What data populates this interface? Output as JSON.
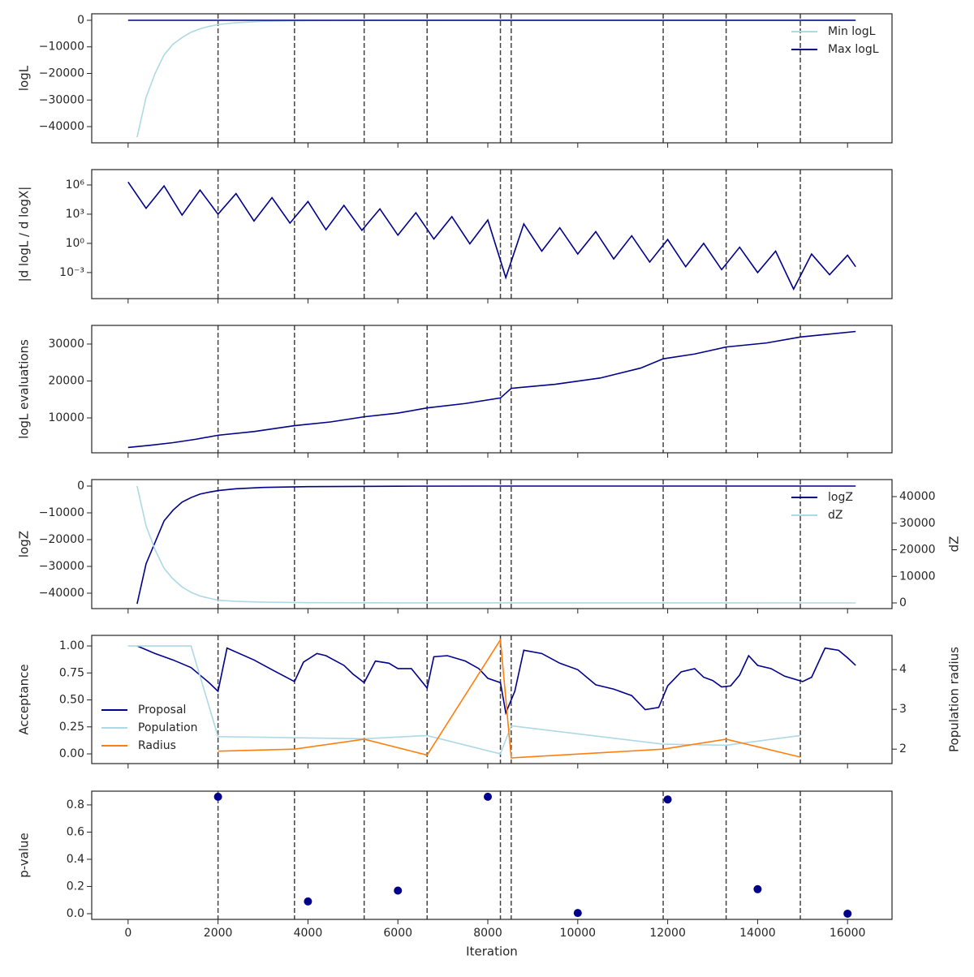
{
  "chart_data": [
    {
      "type": "line",
      "ylabel": "logL",
      "xlim": [
        -809,
        16989
      ],
      "xticks": [
        0,
        2000,
        4000,
        6000,
        8000,
        10000,
        12000,
        14000,
        16000
      ],
      "ylim": [
        -46100,
        2440
      ],
      "yticks": [
        {
          "value": -40000,
          "label": "−40000"
        },
        {
          "value": -30000,
          "label": "−30000"
        },
        {
          "value": -20000,
          "label": "−20000"
        },
        {
          "value": -10000,
          "label": "−10000"
        },
        0
      ],
      "vlines": [
        2000,
        3700,
        5250,
        6650,
        8280,
        8520,
        11900,
        13300,
        14950
      ],
      "legend": "upper right",
      "series": [
        {
          "name": "Min logL",
          "color": "#add8e6",
          "x": [
            200,
            400,
            600,
            800,
            1000,
            1200,
            1400,
            1600,
            1800,
            2000,
            2400,
            3000,
            4000,
            6000,
            8000,
            16180
          ],
          "values": [
            -44000,
            -29000,
            -20000,
            -13000,
            -9000,
            -6500,
            -4500,
            -3200,
            -2300,
            -1600,
            -900,
            -400,
            -150,
            -30,
            0,
            0
          ]
        },
        {
          "name": "Max logL",
          "color": "#00008b",
          "x": [
            0,
            16180
          ],
          "values": [
            0,
            0
          ]
        }
      ]
    },
    {
      "type": "line",
      "ylabel": "|d logL / d logX|",
      "yscale": "log",
      "xlim": [
        -809,
        16989
      ],
      "xticks": [
        0,
        2000,
        4000,
        6000,
        8000,
        10000,
        12000,
        14000,
        16000
      ],
      "ylim": [
        2.1e-06,
        38000000
      ],
      "yticks": [
        {
          "value": 0.001,
          "label": "10⁻³"
        },
        {
          "value": 1,
          "label": "10⁰"
        },
        {
          "value": 1000,
          "label": "10³"
        },
        {
          "value": 1000000,
          "label": "10⁶"
        }
      ],
      "vlines": [
        2000,
        3700,
        5250,
        6650,
        8280,
        8520,
        11900,
        13300,
        14950
      ],
      "series": [
        {
          "color": "#00008b",
          "x": [
            0,
            400,
            800,
            1200,
            1600,
            2000,
            2400,
            2800,
            3200,
            3600,
            4000,
            4400,
            4800,
            5200,
            5600,
            6000,
            6400,
            6800,
            7200,
            7600,
            8000,
            8400,
            8800,
            9200,
            9600,
            10000,
            10400,
            10800,
            11200,
            11600,
            12000,
            12400,
            12800,
            13200,
            13600,
            14000,
            14400,
            14800,
            15200,
            15600,
            16000,
            16180
          ],
          "values": [
            2000000,
            4000,
            800000,
            800,
            300000,
            1000,
            130000,
            200,
            50000,
            120,
            20000,
            25,
            8000,
            22,
            3500,
            7,
            1400,
            2.8,
            560,
            0.9,
            250,
            0.0003,
            100,
            0.16,
            40,
            0.08,
            16,
            0.025,
            6,
            0.012,
            2.5,
            0.004,
            1,
            0.002,
            0.4,
            0.001,
            0.16,
            2e-05,
            0.08,
            0.0006,
            0.06,
            0.004
          ]
        }
      ]
    },
    {
      "type": "line",
      "ylabel": "logL evaluations",
      "xlim": [
        -809,
        16989
      ],
      "xticks": [
        0,
        2000,
        4000,
        6000,
        8000,
        10000,
        12000,
        14000,
        16000
      ],
      "ylim": [
        550,
        35050
      ],
      "yticks": [
        10000,
        20000,
        30000
      ],
      "vlines": [
        2000,
        3700,
        5250,
        6650,
        8280,
        8520,
        11900,
        13300,
        14950
      ],
      "series": [
        {
          "color": "#00008b",
          "x": [
            0,
            500,
            1000,
            1500,
            2000,
            2800,
            3700,
            4500,
            5250,
            6000,
            6650,
            7500,
            8280,
            8520,
            9500,
            10500,
            11400,
            11900,
            12600,
            13300,
            14200,
            14950,
            16180
          ],
          "values": [
            2000,
            2600,
            3300,
            4200,
            5300,
            6300,
            7900,
            8900,
            10300,
            11300,
            12700,
            13900,
            15400,
            18000,
            19100,
            20800,
            23500,
            26000,
            27300,
            29200,
            30300,
            31900,
            33400
          ]
        }
      ]
    },
    {
      "type": "line",
      "ylabel": "logZ",
      "y2label": "dZ",
      "xlim": [
        -809,
        16989
      ],
      "xticks": [
        0,
        2000,
        4000,
        6000,
        8000,
        10000,
        12000,
        14000,
        16000
      ],
      "ylim": [
        -45760,
        2420
      ],
      "yticks": [
        {
          "value": -40000,
          "label": "−40000"
        },
        {
          "value": -30000,
          "label": "−30000"
        },
        {
          "value": -20000,
          "label": "−20000"
        },
        {
          "value": -10000,
          "label": "−10000"
        },
        0
      ],
      "y2lim": [
        -2137,
        46412
      ],
      "y2ticks": [
        0,
        10000,
        20000,
        30000,
        40000
      ],
      "vlines": [
        2000,
        3700,
        5250,
        6650,
        8280,
        8520,
        11900,
        13300,
        14950
      ],
      "legend": "upper right",
      "series": [
        {
          "name": "logZ",
          "color": "#00008b",
          "x": [
            200,
            400,
            600,
            800,
            1000,
            1200,
            1400,
            1600,
            1800,
            2000,
            2400,
            3000,
            4000,
            6000,
            8000,
            16180
          ],
          "values": [
            -44000,
            -29000,
            -21000,
            -13000,
            -9000,
            -6000,
            -4300,
            -3000,
            -2300,
            -1700,
            -1000,
            -500,
            -200,
            -50,
            0,
            0
          ]
        },
        {
          "name": "dZ",
          "color": "#add8e6",
          "axis": "y2",
          "x": [
            200,
            400,
            600,
            800,
            1000,
            1200,
            1400,
            1600,
            2000,
            2400,
            3000,
            4000,
            6000,
            16180
          ],
          "values": [
            44000,
            29000,
            20000,
            13000,
            9000,
            6000,
            4000,
            2600,
            1000,
            600,
            300,
            100,
            20,
            0
          ]
        }
      ]
    },
    {
      "type": "line",
      "ylabel": "Acceptance",
      "y2label": "Population radius",
      "xlim": [
        -809,
        16989
      ],
      "xticks": [
        0,
        2000,
        4000,
        6000,
        8000,
        10000,
        12000,
        14000,
        16000
      ],
      "ylim": [
        -0.09,
        1.098
      ],
      "yticks": [
        {
          "value": 0,
          "label": "0.00"
        },
        0.25,
        {
          "value": 0.5,
          "label": "0.50"
        },
        0.75,
        {
          "value": 1,
          "label": "1.00"
        }
      ],
      "y2lim": [
        1.637,
        4.86
      ],
      "y2ticks": [
        2,
        3,
        4
      ],
      "vlines": [
        2000,
        3700,
        5250,
        6650,
        8280,
        8520,
        11900,
        13300,
        14950
      ],
      "legend": "lower left",
      "series": [
        {
          "name": "Proposal",
          "color": "#00008b",
          "x": [
            200,
            600,
            1000,
            1400,
            1800,
            2000,
            2200,
            2800,
            3200,
            3700,
            3900,
            4200,
            4400,
            4800,
            5000,
            5250,
            5500,
            5800,
            6000,
            6300,
            6650,
            6800,
            7100,
            7500,
            7800,
            8000,
            8280,
            8400,
            8600,
            8800,
            9200,
            9600,
            10000,
            10400,
            10800,
            11200,
            11500,
            11800,
            12000,
            12300,
            12600,
            12800,
            13000,
            13200,
            13400,
            13600,
            13800,
            14000,
            14300,
            14600,
            15000,
            15200,
            15500,
            15800,
            16000,
            16180
          ],
          "values": [
            1.0,
            0.93,
            0.87,
            0.8,
            0.66,
            0.58,
            0.98,
            0.87,
            0.78,
            0.67,
            0.85,
            0.93,
            0.91,
            0.82,
            0.74,
            0.66,
            0.86,
            0.84,
            0.79,
            0.79,
            0.61,
            0.9,
            0.91,
            0.86,
            0.79,
            0.7,
            0.66,
            0.38,
            0.58,
            0.96,
            0.93,
            0.84,
            0.78,
            0.64,
            0.6,
            0.54,
            0.41,
            0.43,
            0.63,
            0.76,
            0.79,
            0.71,
            0.68,
            0.62,
            0.63,
            0.73,
            0.91,
            0.82,
            0.79,
            0.72,
            0.67,
            0.71,
            0.98,
            0.96,
            0.89,
            0.82
          ]
        },
        {
          "name": "Population",
          "color": "#add8e6",
          "x": [
            0,
            1400,
            2000,
            5250,
            6650,
            8280,
            8520,
            11900,
            13300,
            14950
          ],
          "values": [
            1.0,
            1.0,
            0.16,
            0.14,
            0.17,
            0.0,
            0.26,
            0.09,
            0.08,
            0.17
          ]
        },
        {
          "name": "Radius",
          "color": "#ff7f0e",
          "axis": "y2",
          "x": [
            2000,
            3700,
            5250,
            6650,
            8280,
            8520,
            11900,
            13300,
            14950
          ],
          "values": [
            1.95,
            2.0,
            2.25,
            1.85,
            4.75,
            1.78,
            2.0,
            2.25,
            1.8
          ]
        }
      ]
    },
    {
      "type": "scatter",
      "ylabel": "p-value",
      "xlabel": "Iteration",
      "xlim": [
        -809,
        16989
      ],
      "xticks": [
        0,
        2000,
        4000,
        6000,
        8000,
        10000,
        12000,
        14000,
        16000
      ],
      "ylim": [
        -0.042,
        0.901
      ],
      "yticks": [
        {
          "value": 0,
          "label": "0.0"
        },
        0.2,
        0.4,
        0.6,
        0.8
      ],
      "vlines": [
        2000,
        3700,
        5250,
        6650,
        8280,
        8520,
        11900,
        13300,
        14950
      ],
      "series": [
        {
          "color": "#00008b",
          "x": [
            2000,
            4000,
            6000,
            8000,
            10000,
            12000,
            14000,
            16000
          ],
          "values": [
            0.86,
            0.09,
            0.17,
            0.86,
            0.005,
            0.84,
            0.18,
            0.0
          ]
        }
      ]
    }
  ]
}
